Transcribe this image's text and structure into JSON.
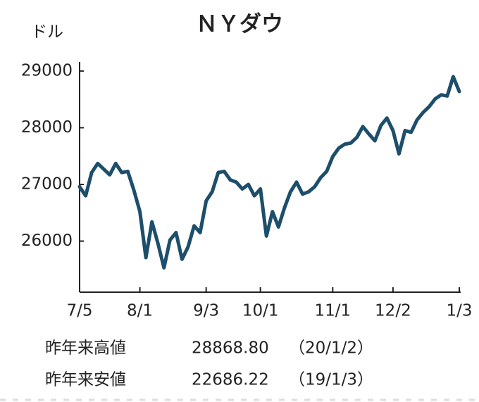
{
  "chart_data": {
    "type": "line",
    "title": "ＮＹダウ",
    "y_label": "ドル",
    "categories": [
      "7/5",
      null,
      null,
      null,
      null,
      null,
      null,
      null,
      null,
      null,
      "8/1",
      null,
      null,
      null,
      null,
      null,
      null,
      null,
      null,
      null,
      null,
      "9/3",
      null,
      null,
      null,
      null,
      null,
      null,
      null,
      null,
      "10/1",
      null,
      null,
      null,
      null,
      null,
      null,
      null,
      null,
      null,
      null,
      null,
      "11/1",
      null,
      null,
      null,
      null,
      null,
      null,
      null,
      null,
      null,
      "12/2",
      null,
      null,
      null,
      null,
      null,
      null,
      null,
      null,
      null,
      null,
      "1/3"
    ],
    "values": [
      26960,
      26800,
      27210,
      27370,
      27270,
      27170,
      27370,
      27210,
      27230,
      26900,
      26520,
      25710,
      26340,
      25960,
      25530,
      26020,
      26150,
      25680,
      25900,
      26270,
      26150,
      26710,
      26870,
      27210,
      27230,
      27080,
      27040,
      26920,
      27000,
      26800,
      26920,
      26090,
      26520,
      26250,
      26590,
      26870,
      27040,
      26830,
      26870,
      26960,
      27120,
      27230,
      27490,
      27640,
      27710,
      27730,
      27830,
      28020,
      27890,
      27770,
      28040,
      28170,
      27950,
      27540,
      27950,
      27920,
      28140,
      28270,
      28370,
      28510,
      28580,
      28560,
      28900,
      28640
    ],
    "color": "#1d4e6b",
    "ylim": [
      25100,
      29160
    ],
    "yticks": [
      26000,
      27000,
      28000,
      29000
    ],
    "annotations": [
      {
        "label": "昨年来高値",
        "value": "28868.80",
        "date": "（20/1/2）"
      },
      {
        "label": "昨年来安値",
        "value": "22686.22",
        "date": "（19/1/3）"
      }
    ]
  }
}
